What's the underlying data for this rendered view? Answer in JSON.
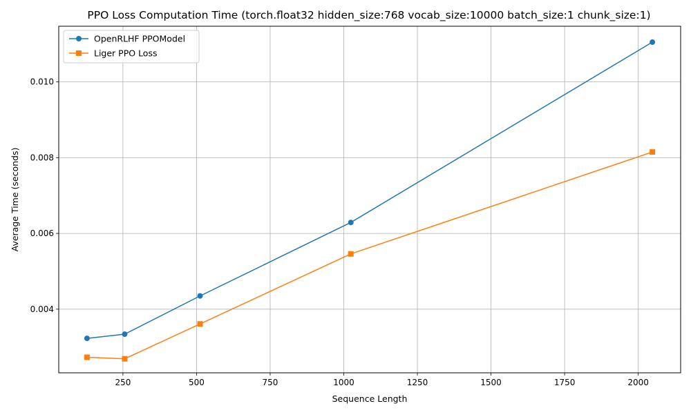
{
  "chart_data": {
    "type": "line",
    "title": "PPO Loss Computation Time (torch.float32 hidden_size:768 vocab_size:10000 batch_size:1 chunk_size:1)",
    "xlabel": "Sequence Length",
    "ylabel": "Average Time (seconds)",
    "x": [
      128,
      256,
      512,
      1024,
      2048
    ],
    "xlim": [
      32,
      2144
    ],
    "ylim": [
      0.00232,
      0.01147
    ],
    "xticks": [
      250,
      500,
      750,
      1000,
      1250,
      1500,
      1750,
      2000
    ],
    "yticks": [
      0.004,
      0.006,
      0.008,
      0.01
    ],
    "xtick_labels": [
      "250",
      "500",
      "750",
      "1000",
      "1250",
      "1500",
      "1750",
      "2000"
    ],
    "ytick_labels": [
      "0.004",
      "0.006",
      "0.008",
      "0.010"
    ],
    "grid": true,
    "legend_position": "top-left",
    "series": [
      {
        "name": "OpenRLHF PPOModel",
        "color": "#1f77b4",
        "marker": "circle",
        "values": [
          0.00323,
          0.00334,
          0.00435,
          0.00629,
          0.01105
        ]
      },
      {
        "name": "Liger PPO Loss",
        "color": "#ff7f0e",
        "marker": "square",
        "values": [
          0.00273,
          0.00269,
          0.00361,
          0.00546,
          0.00815
        ]
      }
    ]
  }
}
